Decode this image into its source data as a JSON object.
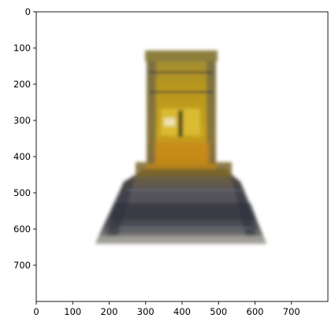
{
  "figure": {
    "xlim": [
      0,
      800
    ],
    "ylim": [
      800,
      0
    ],
    "x_ticks": [
      "0",
      "100",
      "200",
      "300",
      "400",
      "500",
      "600",
      "700"
    ],
    "y_ticks": [
      "0",
      "100",
      "200",
      "300",
      "400",
      "500",
      "600",
      "700"
    ],
    "image_content": "blurry reconstructed render of a stepped tower/temple-like object: yellow-gold upper block on a wider dark blue-gray base with a gray bottom edge, on white background",
    "colors": {
      "gold": "#c9a21b",
      "dark_base": "#4a4a55",
      "blue_gray": "#6b7a8f",
      "bottom_gray": "#9a9890",
      "background": "#ffffff"
    }
  }
}
